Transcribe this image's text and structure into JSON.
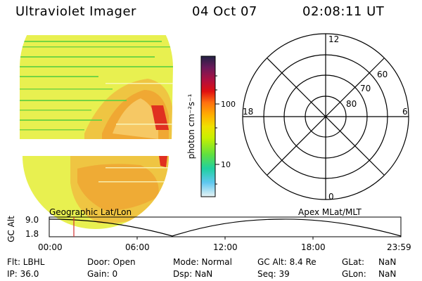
{
  "header": {
    "instrument": "Ultraviolet Imager",
    "date": "04 Oct 07",
    "time": "02:08:11 UT"
  },
  "colorbar": {
    "unit_label": "photon cm⁻²s⁻¹",
    "tick_labels": [
      "100",
      "10"
    ],
    "colors": [
      "#222244",
      "#6a1a5a",
      "#b01040",
      "#e01010",
      "#ff7010",
      "#ffb000",
      "#f0e000",
      "#c8f000",
      "#60e040",
      "#20d0a0",
      "#60c8f0",
      "#e8f4f4"
    ]
  },
  "image_panel": {
    "background": "#e8f050",
    "aurora_colors": [
      "#f0c040",
      "#f0a030",
      "#e03020"
    ]
  },
  "polar_plot": {
    "clock_labels": [
      "12",
      "18",
      "6",
      "0"
    ],
    "lat_labels": [
      "60",
      "70",
      "80"
    ]
  },
  "orbit_strip": {
    "left_label": "Geographic Lat/Lon",
    "right_label": "Apex  MLat/MLT",
    "axis_title": "GC Alt",
    "y_ticks": [
      "9.0",
      "1.8"
    ],
    "time_ticks": [
      "00:00",
      "06:00",
      "12:00",
      "18:00",
      "23:59"
    ],
    "marker_color": "#d03030"
  },
  "info": {
    "filter": "Flt: LBHL",
    "ip": "IP: 36.0",
    "door": "Door: Open",
    "gain": "Gain: 0",
    "mode": "Mode: Normal",
    "dsp": "Dsp:      NaN",
    "gc_alt": "GC Alt: 8.4 Re",
    "seq": "Seq: 39",
    "glat_label": "GLat:",
    "glat_value": "NaN",
    "glon_label": "GLon:",
    "glon_value": "NaN"
  }
}
